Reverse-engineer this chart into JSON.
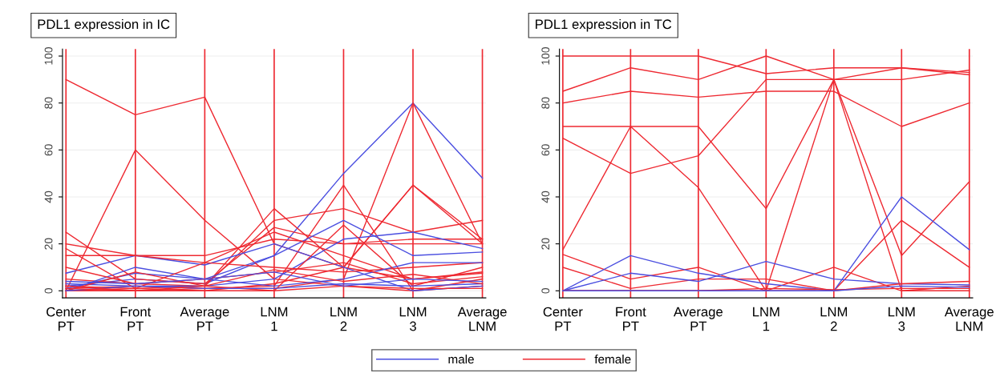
{
  "chart_data": [
    {
      "type": "line",
      "title": "PDL1 expression in IC",
      "categories": [
        "Center\nPT",
        "Front\nPT",
        "Average\nPT",
        "LNM\n1",
        "LNM\n2",
        "LNM\n3",
        "Average\nLNM"
      ],
      "ylim": [
        -3,
        103
      ],
      "yticks": [
        0,
        20,
        40,
        60,
        80,
        100
      ],
      "grid": true,
      "legend": "bottom",
      "series": [
        {
          "name": "male",
          "color": "#4a4ee0",
          "values": [
            2,
            5,
            3,
            15,
            50,
            80,
            48
          ]
        },
        {
          "name": "female",
          "color": "#ee2a32",
          "values": [
            90,
            75,
            82.5,
            20,
            10,
            5,
            7.5
          ]
        },
        {
          "color": "#ee2a32",
          "values": [
            0,
            60,
            30,
            5,
            2,
            0,
            2
          ]
        },
        {
          "color": "#ee2a32",
          "values": [
            1,
            2,
            1,
            1,
            5,
            80,
            20
          ]
        },
        {
          "color": "#ee2a32",
          "values": [
            0,
            0,
            1,
            2,
            45,
            0,
            5
          ]
        },
        {
          "color": "#ee2a32",
          "values": [
            0,
            1,
            0,
            3,
            10,
            45,
            20
          ]
        },
        {
          "color": "#ee2a32",
          "values": [
            2,
            1,
            2,
            35,
            10,
            45,
            22
          ]
        },
        {
          "color": "#ee2a32",
          "values": [
            5,
            3,
            2,
            30,
            35,
            25,
            30
          ]
        },
        {
          "color": "#ee2a32",
          "values": [
            25,
            5,
            3,
            27,
            20,
            22,
            22
          ]
        },
        {
          "color": "#ee2a32",
          "values": [
            20,
            15,
            15,
            22,
            20,
            20,
            20
          ]
        },
        {
          "color": "#4a4ee0",
          "values": [
            7.5,
            15,
            11,
            20,
            10,
            0,
            2
          ]
        },
        {
          "color": "#4a4ee0",
          "values": [
            0,
            10,
            5,
            15,
            30,
            15,
            16.5
          ]
        },
        {
          "color": "#4a4ee0",
          "values": [
            3,
            2,
            2,
            5,
            22,
            25,
            18
          ]
        },
        {
          "color": "#ee2a32",
          "values": [
            15,
            15,
            12,
            10,
            8,
            10,
            12
          ]
        },
        {
          "color": "#ee2a32",
          "values": [
            18,
            1,
            12,
            25,
            15,
            5,
            8
          ]
        },
        {
          "color": "#4a4ee0",
          "values": [
            1,
            7.5,
            5,
            2,
            5,
            12,
            12
          ]
        },
        {
          "color": "#ee2a32",
          "values": [
            10,
            3,
            5,
            8,
            12,
            3,
            6
          ]
        },
        {
          "color": "#ee2a32",
          "values": [
            0,
            8,
            2,
            0,
            28,
            2,
            10
          ]
        },
        {
          "color": "#4a4ee0",
          "values": [
            0,
            2,
            1,
            1,
            3,
            2,
            3
          ]
        },
        {
          "color": "#ee2a32",
          "values": [
            1,
            0,
            2,
            9,
            4,
            7,
            3
          ]
        },
        {
          "color": "#ee2a32",
          "values": [
            2,
            0,
            0,
            0,
            2,
            1,
            1
          ]
        },
        {
          "color": "#4a4ee0",
          "values": [
            4,
            3,
            5,
            8,
            2,
            5,
            4
          ]
        }
      ]
    },
    {
      "type": "line",
      "title": "PDL1 expression in TC",
      "categories": [
        "Center\nPT",
        "Front\nPT",
        "Average\nPT",
        "LNM\n1",
        "LNM\n2",
        "LNM\n3",
        "Average\nLNM"
      ],
      "ylim": [
        -3,
        103
      ],
      "yticks": [
        0,
        20,
        40,
        60,
        80,
        100
      ],
      "grid": true,
      "series": [
        {
          "color": "#ee2a32",
          "values": [
            100,
            100,
            100,
            92.5,
            95,
            95,
            93
          ]
        },
        {
          "color": "#ee2a32",
          "values": [
            85,
            95,
            90,
            100,
            90,
            95,
            92
          ]
        },
        {
          "color": "#ee2a32",
          "values": [
            80,
            85,
            82.5,
            85,
            85,
            70,
            80
          ]
        },
        {
          "color": "#ee2a32",
          "values": [
            70,
            70,
            70,
            35,
            90,
            90,
            94
          ]
        },
        {
          "color": "#ee2a32",
          "values": [
            65,
            50,
            57.5,
            90,
            90,
            15,
            46.5
          ]
        },
        {
          "color": "#ee2a32",
          "values": [
            17.5,
            70,
            44,
            0,
            90,
            0,
            2
          ]
        },
        {
          "color": "#ee2a32",
          "values": [
            15.5,
            5,
            10,
            0,
            10,
            0,
            0
          ]
        },
        {
          "color": "#ee2a32",
          "values": [
            10,
            1,
            5,
            5,
            0,
            30,
            10
          ]
        },
        {
          "color": "#4a4ee0",
          "values": [
            0,
            15,
            7.5,
            3,
            0,
            40,
            17.5
          ]
        },
        {
          "color": "#4a4ee0",
          "values": [
            0,
            7.5,
            4,
            12.5,
            5,
            3,
            2.5
          ]
        },
        {
          "color": "#ee2a32",
          "values": [
            0,
            0,
            0,
            0,
            0,
            3,
            4
          ]
        },
        {
          "color": "#ee2a32",
          "values": [
            0,
            0,
            0,
            1,
            0.5,
            1,
            1
          ]
        },
        {
          "color": "#4a4ee0",
          "values": [
            0,
            0,
            0,
            0,
            0,
            2,
            1.5
          ]
        }
      ]
    }
  ]
}
